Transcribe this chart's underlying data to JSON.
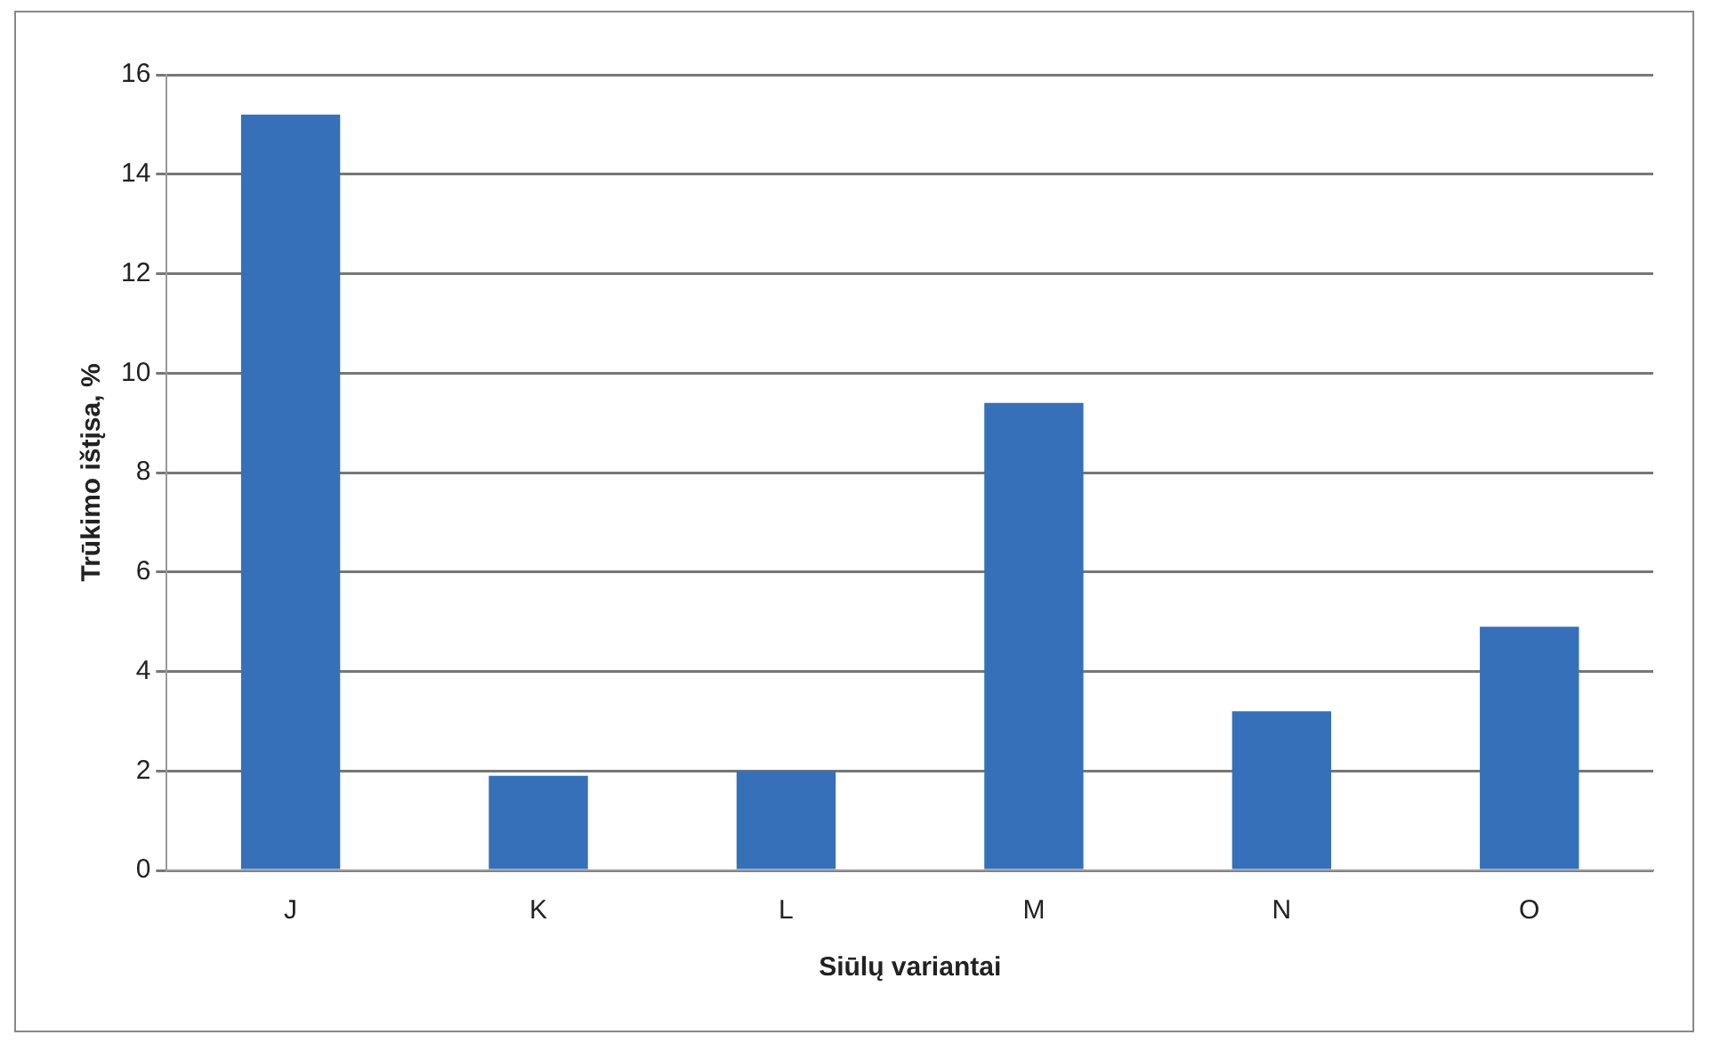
{
  "chart_data": {
    "type": "bar",
    "xlabel": "Siūlų variantai",
    "ylabel": "Trūkimo ištįsa, %",
    "categories": [
      "J",
      "K",
      "L",
      "M",
      "N",
      "O"
    ],
    "values": [
      15.2,
      1.9,
      2.0,
      9.4,
      3.2,
      4.9
    ],
    "color": "#3670b8",
    "ylim": [
      0,
      16
    ],
    "yticks": [
      0,
      2,
      4,
      6,
      8,
      10,
      12,
      14,
      16
    ],
    "grid": "y",
    "legend": false
  }
}
